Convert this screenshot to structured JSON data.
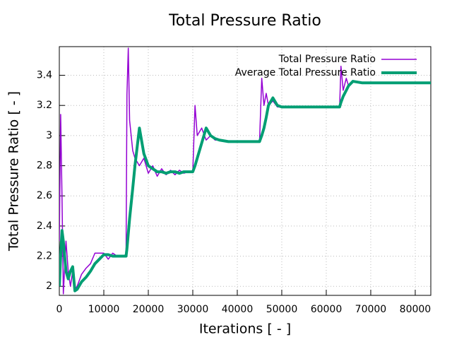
{
  "chart_data": {
    "type": "line",
    "title": "Total Pressure Ratio",
    "x_label": "Iterations [ - ]",
    "y_label": "Total Pressure Ratio [ - ]",
    "x": [
      0,
      300,
      600,
      900,
      1500,
      2000,
      2500,
      3000,
      3500,
      4000,
      5000,
      6000,
      7000,
      8000,
      9000,
      10000,
      11000,
      12000,
      13000,
      14000,
      15000,
      15200,
      15500,
      15800,
      16500,
      17000,
      18000,
      19000,
      20000,
      21000,
      22000,
      23000,
      24000,
      25000,
      26000,
      27000,
      28000,
      29000,
      30000,
      30500,
      31000,
      32000,
      33000,
      34000,
      35000,
      36000,
      38000,
      40000,
      42000,
      44000,
      45000,
      45500,
      46000,
      46500,
      47000,
      48000,
      49000,
      50000,
      55000,
      60000,
      63000,
      63300,
      63800,
      64500,
      65000,
      66000,
      68000,
      72000,
      83500
    ],
    "series": [
      {
        "name": "Total Pressure Ratio",
        "color": "#9400d3",
        "width": 1.5,
        "values": [
          2.3,
          3.14,
          2.6,
          1.95,
          2.3,
          2.1,
          2.0,
          2.1,
          1.98,
          2.0,
          2.08,
          2.12,
          2.15,
          2.22,
          2.22,
          2.22,
          2.18,
          2.22,
          2.2,
          2.2,
          2.21,
          3.27,
          3.58,
          3.1,
          2.9,
          2.85,
          2.8,
          2.85,
          2.75,
          2.8,
          2.73,
          2.78,
          2.74,
          2.77,
          2.74,
          2.77,
          2.75,
          2.76,
          2.76,
          3.2,
          3.0,
          3.05,
          2.97,
          3.0,
          2.97,
          2.97,
          2.96,
          2.96,
          2.96,
          2.96,
          2.96,
          3.38,
          3.2,
          3.28,
          3.2,
          3.23,
          3.19,
          3.19,
          3.19,
          3.19,
          3.19,
          3.46,
          3.3,
          3.38,
          3.33,
          3.36,
          3.35,
          3.35,
          3.35
        ]
      },
      {
        "name": "Average Total Pressure Ratio",
        "color": "#009e73",
        "width": 4,
        "values": [
          2.0,
          2.2,
          2.37,
          2.3,
          2.1,
          2.05,
          2.1,
          2.13,
          1.97,
          1.98,
          2.03,
          2.06,
          2.1,
          2.15,
          2.18,
          2.21,
          2.21,
          2.2,
          2.2,
          2.2,
          2.2,
          2.25,
          2.35,
          2.45,
          2.65,
          2.8,
          3.05,
          2.88,
          2.8,
          2.78,
          2.76,
          2.76,
          2.75,
          2.76,
          2.76,
          2.75,
          2.76,
          2.76,
          2.76,
          2.8,
          2.85,
          2.95,
          3.05,
          3.0,
          2.98,
          2.97,
          2.96,
          2.96,
          2.96,
          2.96,
          2.96,
          3.0,
          3.05,
          3.12,
          3.2,
          3.25,
          3.2,
          3.19,
          3.19,
          3.19,
          3.19,
          3.22,
          3.26,
          3.3,
          3.33,
          3.36,
          3.35,
          3.35,
          3.35
        ]
      }
    ],
    "xlim": [
      0,
      83500
    ],
    "ylim": [
      1.94,
      3.59
    ],
    "xticks": [
      0,
      10000,
      20000,
      30000,
      40000,
      50000,
      60000,
      70000,
      80000
    ],
    "yticks": [
      2,
      2.2,
      2.4,
      2.6,
      2.8,
      3,
      3.2,
      3.4
    ],
    "grid": true,
    "legend": "top-right"
  }
}
